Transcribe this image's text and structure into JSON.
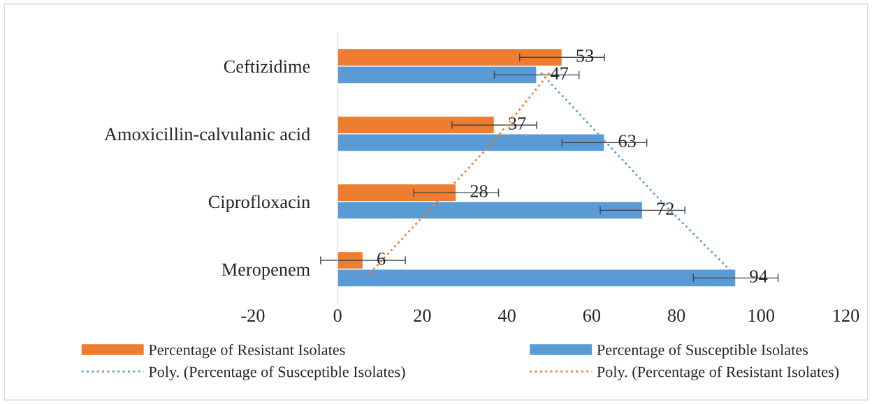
{
  "chart_data": {
    "type": "bar",
    "orientation": "horizontal",
    "categories": [
      "Ceftizidime",
      "Amoxicillin-calvulanic acid",
      "Ciprofloxacin",
      "Meropenem"
    ],
    "series": [
      {
        "name": "Percentage of Resistant Isolates",
        "color": "#ed7d31",
        "values": [
          53,
          37,
          28,
          6
        ],
        "errors": [
          10,
          10,
          10,
          10
        ],
        "value_labels": [
          "53",
          "37",
          "28",
          "6"
        ]
      },
      {
        "name": "Percentage of Susceptible Isolates",
        "color": "#5b9bd5",
        "values": [
          47,
          63,
          72,
          94
        ],
        "errors": [
          10,
          10,
          10,
          10
        ],
        "value_labels": [
          "47",
          "63",
          "72",
          "94"
        ]
      },
      {
        "name": "Poly. (Percentage of Susceptible Isolates)",
        "type": "line",
        "line_style": "dotted",
        "color": "#5b9bd5",
        "values": [
          48,
          63,
          78,
          94
        ]
      },
      {
        "name": "Poly. (Percentage of Resistant Isolates)",
        "type": "line",
        "line_style": "dotted",
        "color": "#ed7d31",
        "values": [
          50,
          37,
          22,
          7
        ]
      }
    ],
    "xlim": [
      -20,
      120
    ],
    "xticks": [
      -20,
      0,
      20,
      40,
      60,
      80,
      100,
      120
    ],
    "legend": "bottom"
  }
}
